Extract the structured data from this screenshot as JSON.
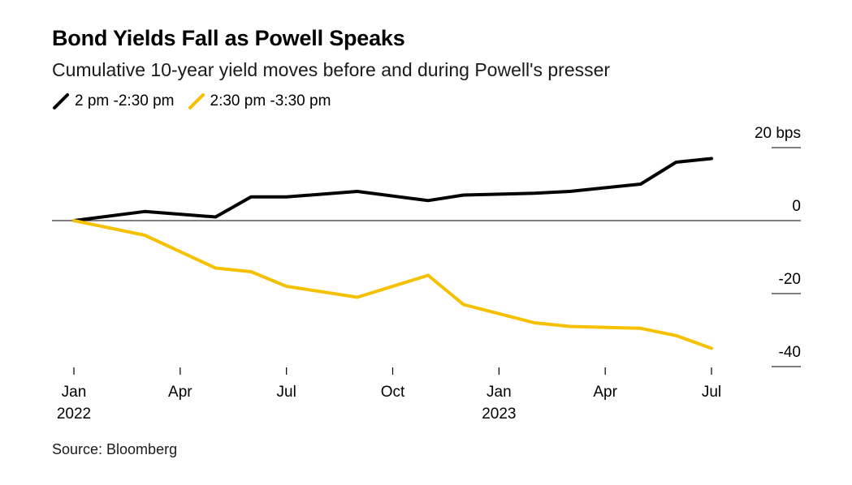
{
  "header": {
    "title": "Bond Yields Fall as Powell Speaks",
    "subtitle": "Cumulative 10-year yield moves before and during Powell's presser"
  },
  "legend": [
    {
      "label": "2 pm -2:30 pm",
      "color": "#000000"
    },
    {
      "label": "2:30 pm -3:30 pm",
      "color": "#f5c000"
    }
  ],
  "source": "Source: Bloomberg",
  "chart_data": {
    "type": "line",
    "x": [
      "2022-01",
      "2022-03",
      "2022-05",
      "2022-06",
      "2022-07",
      "2022-09",
      "2022-11",
      "2022-12",
      "2023-02",
      "2023-03",
      "2023-05",
      "2023-06",
      "2023-07"
    ],
    "series": [
      {
        "name": "2 pm -2:30 pm",
        "color": "#000000",
        "values": [
          0,
          2.5,
          1,
          6.5,
          6.5,
          8,
          5.5,
          7,
          7.5,
          8,
          10,
          16,
          17
        ]
      },
      {
        "name": "2:30 pm -3:30 pm",
        "color": "#f5c000",
        "values": [
          0,
          -4,
          -13,
          -14,
          -18,
          -21,
          -15,
          -23,
          -28,
          -29,
          -29.5,
          -31.5,
          -35
        ]
      }
    ],
    "y_ticks": [
      {
        "value": 20,
        "label": "20 bps"
      },
      {
        "value": 0,
        "label": "0"
      },
      {
        "value": -20,
        "label": "-20"
      },
      {
        "value": -40,
        "label": "-40"
      }
    ],
    "x_ticks": [
      {
        "date": "2022-01",
        "label": "Jan",
        "year": "2022"
      },
      {
        "date": "2022-04",
        "label": "Apr",
        "year": ""
      },
      {
        "date": "2022-07",
        "label": "Jul",
        "year": ""
      },
      {
        "date": "2022-10",
        "label": "Oct",
        "year": ""
      },
      {
        "date": "2023-01",
        "label": "Jan",
        "year": "2023"
      },
      {
        "date": "2023-04",
        "label": "Apr",
        "year": ""
      },
      {
        "date": "2023-07",
        "label": "Jul",
        "year": ""
      }
    ],
    "ylim": [
      -40,
      20
    ],
    "xlim": [
      "2022-01",
      "2023-07"
    ],
    "grid": false,
    "legend_position": "top-left"
  }
}
